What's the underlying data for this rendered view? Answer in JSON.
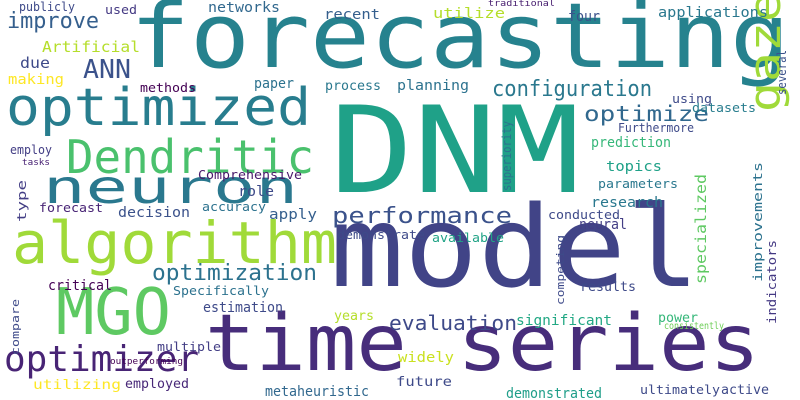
{
  "words": [
    {
      "text": "forecasting",
      "color": "#26828e"
    },
    {
      "text": "DNM",
      "color": "#1fa188"
    },
    {
      "text": "model",
      "color": "#414487"
    },
    {
      "text": "time series",
      "color": "#472d7b"
    },
    {
      "text": "algorithm",
      "color": "#a0da39"
    },
    {
      "text": "optimized",
      "color": "#287d8e"
    },
    {
      "text": "Dendritic",
      "color": "#4ac16d"
    },
    {
      "text": "neuron",
      "color": "#2a788e"
    },
    {
      "text": "MGO",
      "color": "#5ec962"
    },
    {
      "text": "mountain",
      "color": "#440154"
    },
    {
      "text": "gazelle",
      "color": "#a0da39"
    },
    {
      "text": "optimizer",
      "color": "#482475"
    },
    {
      "text": "performance",
      "color": "#3b528b"
    },
    {
      "text": "optimization",
      "color": "#2c728e"
    },
    {
      "text": "evaluation",
      "color": "#3e4a89"
    },
    {
      "text": "configuration",
      "color": "#2a788e"
    },
    {
      "text": "optimize",
      "color": "#31688e"
    },
    {
      "text": "improve",
      "color": "#355f8d"
    },
    {
      "text": "ANN",
      "color": "#3b528b"
    },
    {
      "text": "Artificial",
      "color": "#b5de2b"
    },
    {
      "text": "publicly",
      "color": "#3e4a89"
    },
    {
      "text": "used",
      "color": "#443983"
    },
    {
      "text": "networks",
      "color": "#31688e"
    },
    {
      "text": "recent",
      "color": "#355f8d"
    },
    {
      "text": "utilize",
      "color": "#b5de2b"
    },
    {
      "text": "traditional",
      "color": "#481f70"
    },
    {
      "text": "four",
      "color": "#3b528b"
    },
    {
      "text": "applications",
      "color": "#2a788e"
    },
    {
      "text": "due",
      "color": "#3e4a89"
    },
    {
      "text": "making",
      "color": "#fde725"
    },
    {
      "text": "paper",
      "color": "#2c728e"
    },
    {
      "text": "methods",
      "color": "#440154"
    },
    {
      "text": "process",
      "color": "#2a788e"
    },
    {
      "text": "planning",
      "color": "#2c728e"
    },
    {
      "text": "using",
      "color": "#3e4a89"
    },
    {
      "text": "datasets",
      "color": "#287d8e"
    },
    {
      "text": "several",
      "color": "#3b528b"
    },
    {
      "text": "prediction",
      "color": "#35b779"
    },
    {
      "text": "Furthermore",
      "color": "#3e4a89"
    },
    {
      "text": "superiority",
      "color": "#2c728e"
    },
    {
      "text": "employ",
      "color": "#433e85"
    },
    {
      "text": "tasks",
      "color": "#482173"
    },
    {
      "text": "Comprehensive",
      "color": "#48186a"
    },
    {
      "text": "role",
      "color": "#3e4a89"
    },
    {
      "text": "topics",
      "color": "#1fa188"
    },
    {
      "text": "parameters",
      "color": "#2a788e"
    },
    {
      "text": "type",
      "color": "#433e85"
    },
    {
      "text": "forecast",
      "color": "#482475"
    },
    {
      "text": "accuracy",
      "color": "#2c728e"
    },
    {
      "text": "decision",
      "color": "#3b528b"
    },
    {
      "text": "apply",
      "color": "#355f8d"
    },
    {
      "text": "research",
      "color": "#2a788e"
    },
    {
      "text": "conducted",
      "color": "#3e4a89"
    },
    {
      "text": "specialized",
      "color": "#5ec962"
    },
    {
      "text": "improvements",
      "color": "#2c728e"
    },
    {
      "text": "indicators",
      "color": "#443983"
    },
    {
      "text": "demonstrate",
      "color": "#3e4a89"
    },
    {
      "text": "neural",
      "color": "#433e85"
    },
    {
      "text": "available",
      "color": "#20a386"
    },
    {
      "text": "competing",
      "color": "#3e4a89"
    },
    {
      "text": "critical",
      "color": "#440154"
    },
    {
      "text": "Specifically",
      "color": "#2c728e"
    },
    {
      "text": "estimation",
      "color": "#3e4a89"
    },
    {
      "text": "results",
      "color": "#3e4a89"
    },
    {
      "text": "years",
      "color": "#b5de2b"
    },
    {
      "text": "significant",
      "color": "#22a884"
    },
    {
      "text": "power",
      "color": "#35b779"
    },
    {
      "text": "consistently",
      "color": "#6ece58"
    },
    {
      "text": "compare",
      "color": "#3e4a89"
    },
    {
      "text": "multiple",
      "color": "#433e85"
    },
    {
      "text": "widely",
      "color": "#cae11f"
    },
    {
      "text": "outperforming",
      "color": "#440154"
    },
    {
      "text": "utilizing",
      "color": "#fde725"
    },
    {
      "text": "employed",
      "color": "#482878"
    },
    {
      "text": "metaheuristic",
      "color": "#31688e"
    },
    {
      "text": "future",
      "color": "#3e4a89"
    },
    {
      "text": "demonstrated",
      "color": "#1f9e89"
    },
    {
      "text": "ultimately",
      "color": "#3e4a89"
    },
    {
      "text": "active",
      "color": "#3e4a89"
    }
  ]
}
